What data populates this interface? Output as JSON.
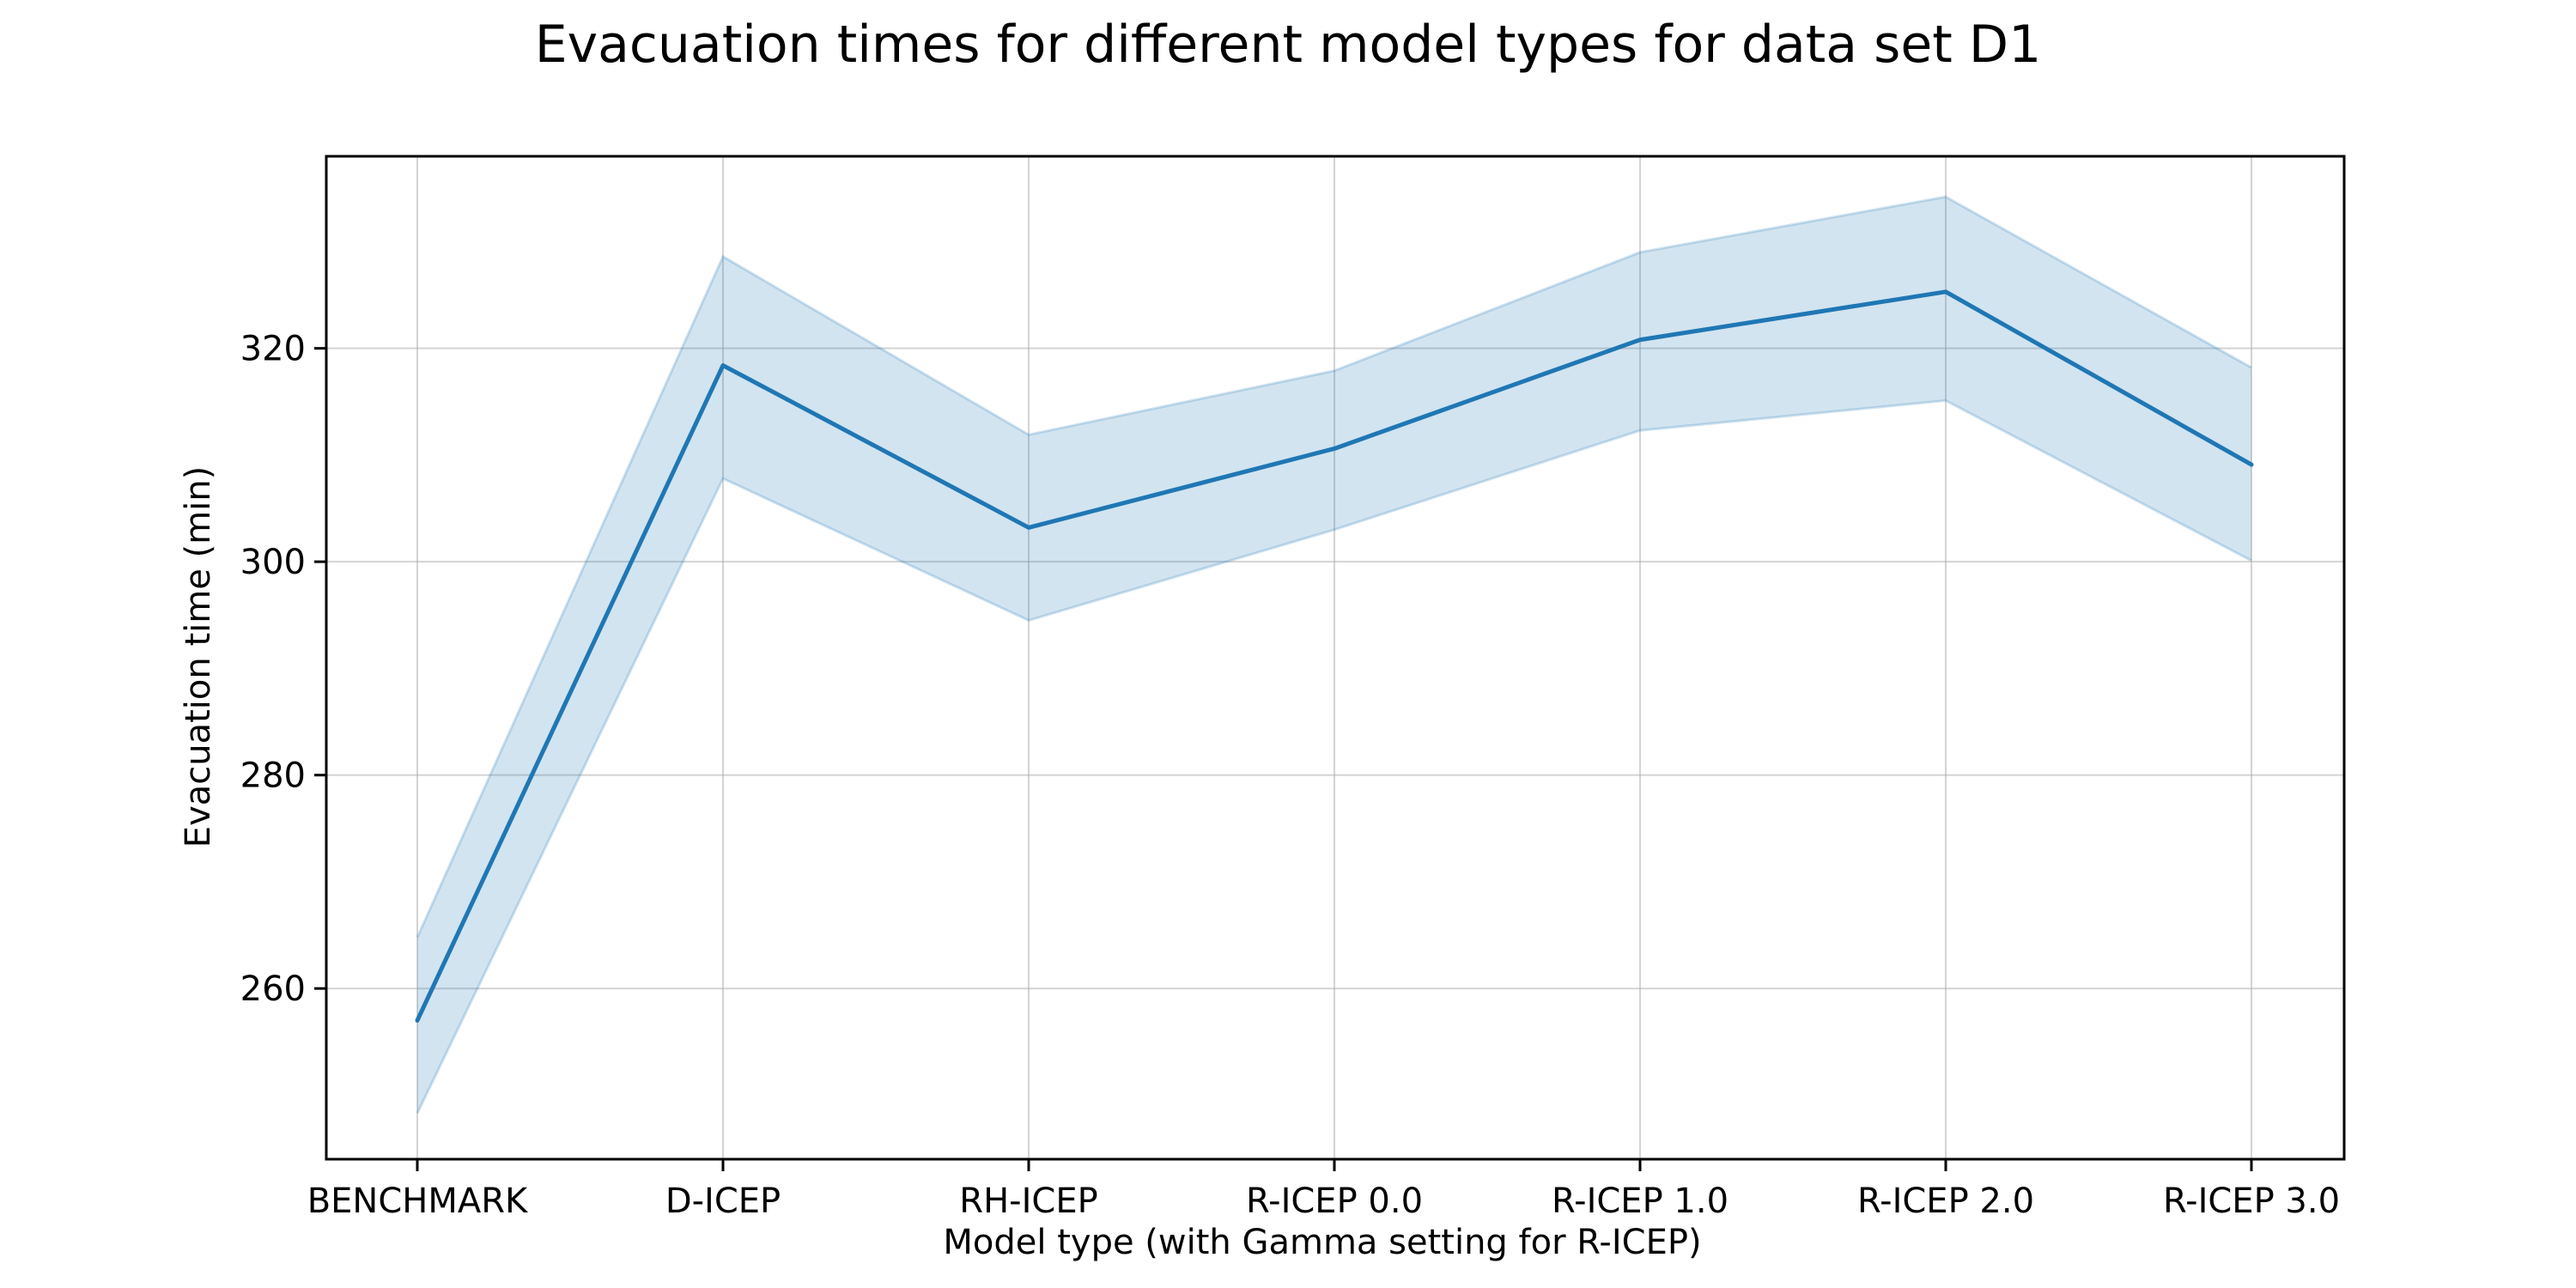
{
  "chart_data": {
    "type": "line",
    "title": "Evacuation times for different model types for data set D1",
    "xlabel": "Model type (with Gamma setting for R-ICEP)",
    "ylabel": "Evacuation time (min)",
    "categories": [
      "BENCHMARK",
      "D-ICEP",
      "RH-ICEP",
      "R-ICEP 0.0",
      "R-ICEP 1.0",
      "R-ICEP 2.0",
      "R-ICEP 3.0"
    ],
    "ylim": [
      244,
      338
    ],
    "yticks": [
      260,
      280,
      300,
      320
    ],
    "grid": true,
    "series": [
      {
        "values": [
          257.0,
          318.4,
          303.2,
          310.6,
          320.8,
          325.3,
          309.1
        ],
        "lower": [
          248.3,
          307.8,
          294.5,
          303.0,
          312.3,
          315.1,
          300.1
        ],
        "upper": [
          264.8,
          328.6,
          311.9,
          317.9,
          329.0,
          334.2,
          318.2
        ]
      }
    ],
    "colors": {
      "line": "#1f77b4",
      "band": "#1f77b4"
    }
  }
}
